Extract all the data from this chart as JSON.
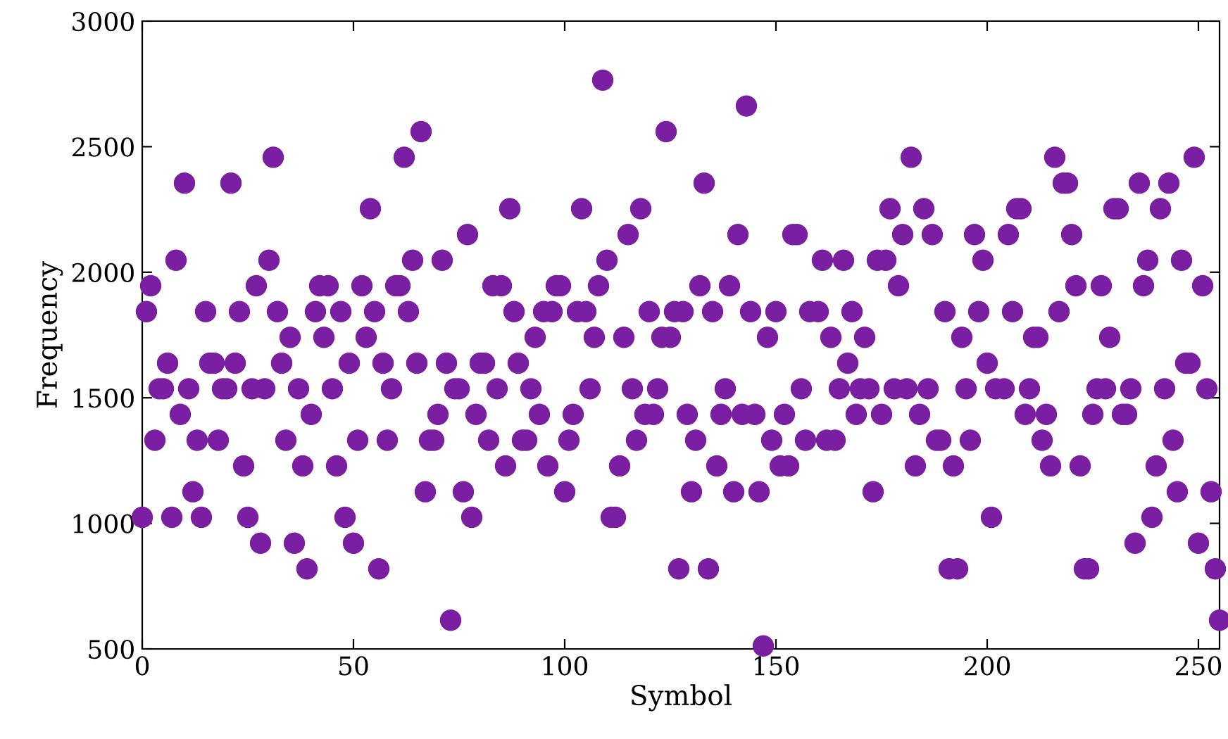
{
  "chart_data": {
    "type": "scatter",
    "xlabel": "Symbol",
    "ylabel": "Frequency",
    "x": [
      0,
      1,
      2,
      3,
      4,
      5,
      6,
      7,
      8,
      9,
      10,
      11,
      12,
      13,
      14,
      15,
      16,
      17,
      18,
      19,
      20,
      21,
      22,
      23,
      24,
      25,
      26,
      27,
      28,
      29,
      30,
      31,
      32,
      33,
      34,
      35,
      36,
      37,
      38,
      39,
      40,
      41,
      42,
      43,
      44,
      45,
      46,
      47,
      48,
      49,
      50,
      51,
      52,
      53,
      54,
      55,
      56,
      57,
      58,
      59,
      60,
      61,
      62,
      63,
      64,
      65,
      66,
      67,
      68,
      69,
      70,
      71,
      72,
      73,
      74,
      75,
      76,
      77,
      78,
      79,
      80,
      81,
      82,
      83,
      84,
      85,
      86,
      87,
      88,
      89,
      90,
      91,
      92,
      93,
      94,
      95,
      96,
      97,
      98,
      99,
      100,
      101,
      102,
      103,
      104,
      105,
      106,
      107,
      108,
      109,
      110,
      111,
      112,
      113,
      114,
      115,
      116,
      117,
      118,
      119,
      120,
      121,
      122,
      123,
      124,
      125,
      126,
      127,
      128,
      129,
      130,
      131,
      132,
      133,
      134,
      135,
      136,
      137,
      138,
      139,
      140,
      141,
      142,
      143,
      144,
      145,
      146,
      147,
      148,
      149,
      150,
      151,
      152,
      153,
      154,
      155,
      156,
      157,
      158,
      159,
      160,
      161,
      162,
      163,
      164,
      165,
      166,
      167,
      168,
      169,
      170,
      171,
      172,
      173,
      174,
      175,
      176,
      177,
      178,
      179,
      180,
      181,
      182,
      183,
      184,
      185,
      186,
      187,
      188,
      189,
      190,
      191,
      192,
      193,
      194,
      195,
      196,
      197,
      198,
      199,
      200,
      201,
      202,
      203,
      204,
      205,
      206,
      207,
      208,
      209,
      210,
      211,
      212,
      213,
      214,
      215,
      216,
      217,
      218,
      219,
      220,
      221,
      222,
      223,
      224,
      225,
      226,
      227,
      228,
      229,
      230,
      231,
      232,
      233,
      234,
      235,
      236,
      237,
      238,
      239,
      240,
      241,
      242,
      243,
      244,
      245,
      246,
      247,
      248,
      249,
      250,
      251,
      252,
      253,
      254,
      255
    ],
    "series": [
      {
        "color": "#7b1fa2",
        "values": [
          1024,
          1843,
          1946,
          1331,
          1536,
          1536,
          1638,
          1024,
          2048,
          1434,
          2355,
          1536,
          1126,
          1331,
          1024,
          1843,
          1638,
          1638,
          1331,
          1536,
          1536,
          2355,
          1638,
          1843,
          1229,
          1024,
          1536,
          1946,
          921,
          1536,
          2048,
          2458,
          1843,
          1638,
          1331,
          1741,
          921,
          1536,
          1229,
          819,
          1434,
          1843,
          1946,
          1741,
          1946,
          1536,
          1229,
          1843,
          1024,
          1638,
          921,
          1331,
          1946,
          1741,
          2253,
          1843,
          819,
          1638,
          1331,
          1536,
          1946,
          1946,
          2458,
          1843,
          2048,
          1638,
          2560,
          1126,
          1331,
          1331,
          1434,
          2048,
          1638,
          614,
          1536,
          1536,
          1126,
          2150,
          1024,
          1434,
          1638,
          1638,
          1331,
          1946,
          1536,
          1946,
          1229,
          2253,
          1843,
          1638,
          1331,
          1331,
          1536,
          1741,
          1434,
          1843,
          1229,
          1843,
          1946,
          1946,
          1126,
          1331,
          1434,
          1843,
          2253,
          1843,
          1536,
          1741,
          1946,
          2765,
          2048,
          1024,
          1024,
          1229,
          1741,
          2150,
          1536,
          1331,
          2253,
          1434,
          1843,
          1434,
          1536,
          1741,
          2560,
          1741,
          1843,
          819,
          1843,
          1434,
          1126,
          1331,
          1946,
          2355,
          819,
          1843,
          1229,
          1434,
          1536,
          1946,
          1126,
          2150,
          1434,
          2662,
          1843,
          1434,
          1126,
          512,
          1741,
          1331,
          1843,
          1229,
          1434,
          1229,
          2150,
          2150,
          1536,
          1331,
          1843,
          null,
          1843,
          2048,
          1331,
          1741,
          1331,
          1536,
          2048,
          1638,
          1843,
          1434,
          1536,
          1741,
          1536,
          1126,
          2048,
          1434,
          2048,
          2253,
          1536,
          1946,
          2150,
          1536,
          2458,
          1229,
          1434,
          2253,
          1536,
          2150,
          1331,
          1331,
          1843,
          819,
          1229,
          819,
          1741,
          1536,
          1331,
          2150,
          1843,
          2048,
          1638,
          1024,
          1536,
          null,
          1536,
          2150,
          1843,
          2253,
          2253,
          1434,
          1536,
          1741,
          1741,
          1331,
          1434,
          1229,
          2458,
          1843,
          2355,
          2355,
          2150,
          1946,
          1229,
          819,
          819,
          1434,
          1536,
          1946,
          1536,
          1741,
          2253,
          2253,
          1434,
          1434,
          1536,
          921,
          2355,
          1946,
          2048,
          1024,
          1229,
          2253,
          1536,
          2355,
          1331,
          1126,
          2048,
          1638,
          1638,
          2458,
          921,
          1946,
          1536,
          1126,
          819,
          614
        ]
      }
    ],
    "xlim": [
      0,
      255
    ],
    "xticks": [
      0,
      50,
      100,
      150,
      200,
      250
    ],
    "ylim": [
      500,
      3000
    ],
    "yticks": [
      500,
      1000,
      1500,
      2000,
      2500,
      3000
    ],
    "marker": "circle",
    "grid": false
  }
}
